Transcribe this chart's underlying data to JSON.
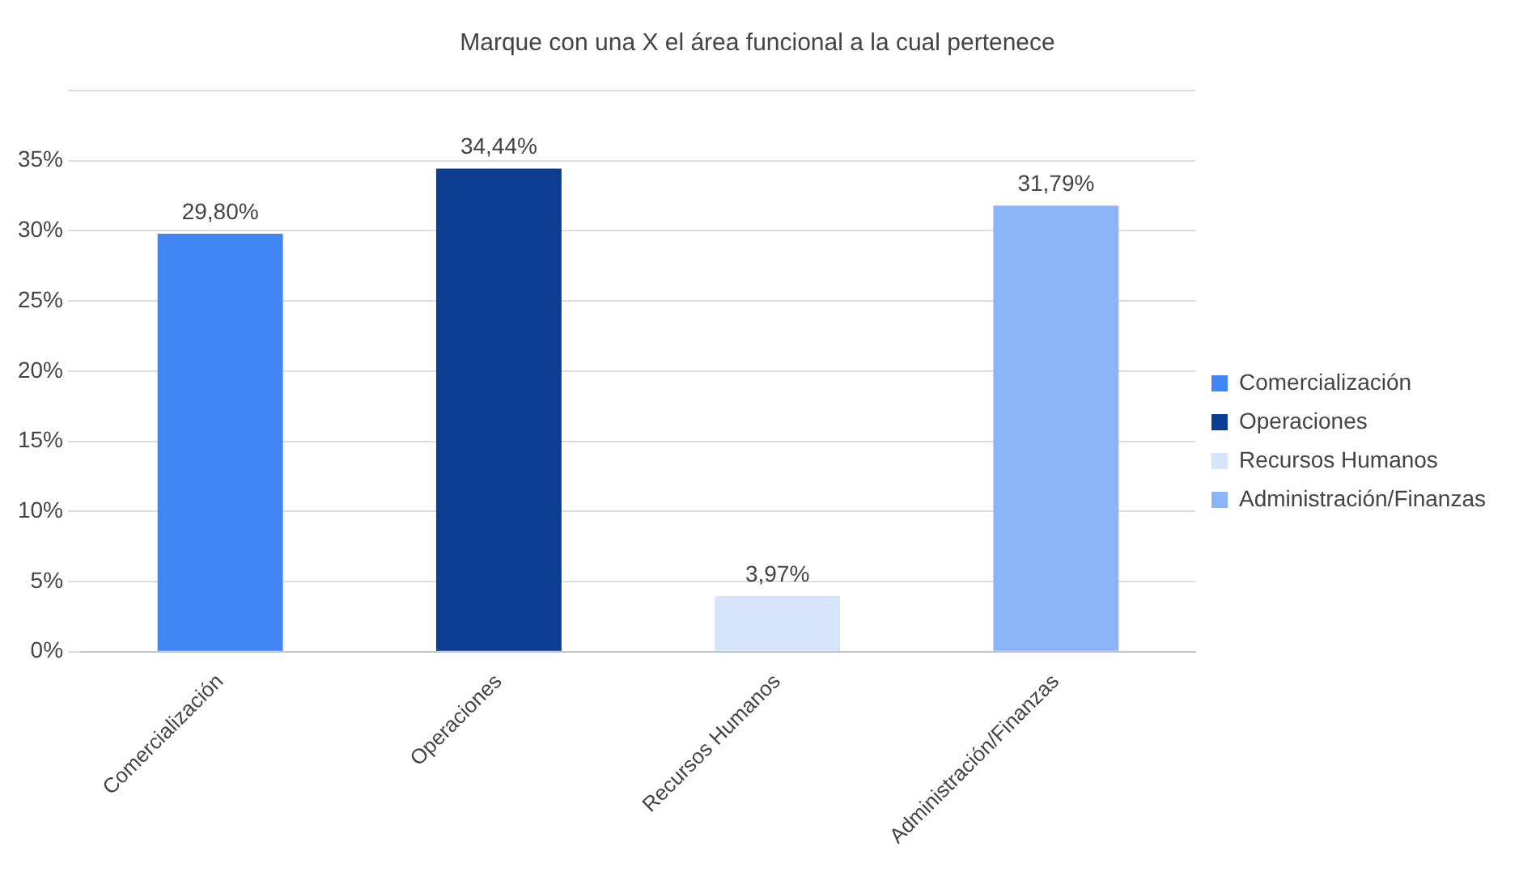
{
  "chart_data": {
    "type": "bar",
    "title": "Marque con una X el área funcional a la cual pertenece",
    "categories": [
      "Comercialización",
      "Operaciones",
      "Recursos Humanos",
      "Administración/Finanzas"
    ],
    "series": [
      {
        "name": "Comercialización",
        "color": "#4285f4",
        "values": [
          29.8,
          null,
          null,
          null
        ],
        "value_labels": [
          "29,80%",
          null,
          null,
          null
        ]
      },
      {
        "name": "Operaciones",
        "color": "#0b3d91",
        "values": [
          null,
          34.44,
          null,
          null
        ],
        "value_labels": [
          null,
          "34,44%",
          null,
          null
        ]
      },
      {
        "name": "Recursos Humanos",
        "color": "#d6e4fc",
        "values": [
          null,
          null,
          3.97,
          null
        ],
        "value_labels": [
          null,
          null,
          "3,97%",
          null
        ]
      },
      {
        "name": "Administración/Finanzas",
        "color": "#8cb4f8",
        "values": [
          null,
          null,
          null,
          31.79
        ],
        "value_labels": [
          null,
          null,
          null,
          "31,79%"
        ]
      }
    ],
    "ylim": [
      0,
      40
    ],
    "yticks": [
      {
        "value": 0,
        "label": "0%"
      },
      {
        "value": 5,
        "label": "5%"
      },
      {
        "value": 10,
        "label": "10%"
      },
      {
        "value": 15,
        "label": "15%"
      },
      {
        "value": 20,
        "label": "20%"
      },
      {
        "value": 25,
        "label": "25%"
      },
      {
        "value": 30,
        "label": "30%"
      },
      {
        "value": 35,
        "label": "35%"
      },
      {
        "value": 40,
        "label": null
      }
    ],
    "grid": "y",
    "legend": "right"
  }
}
